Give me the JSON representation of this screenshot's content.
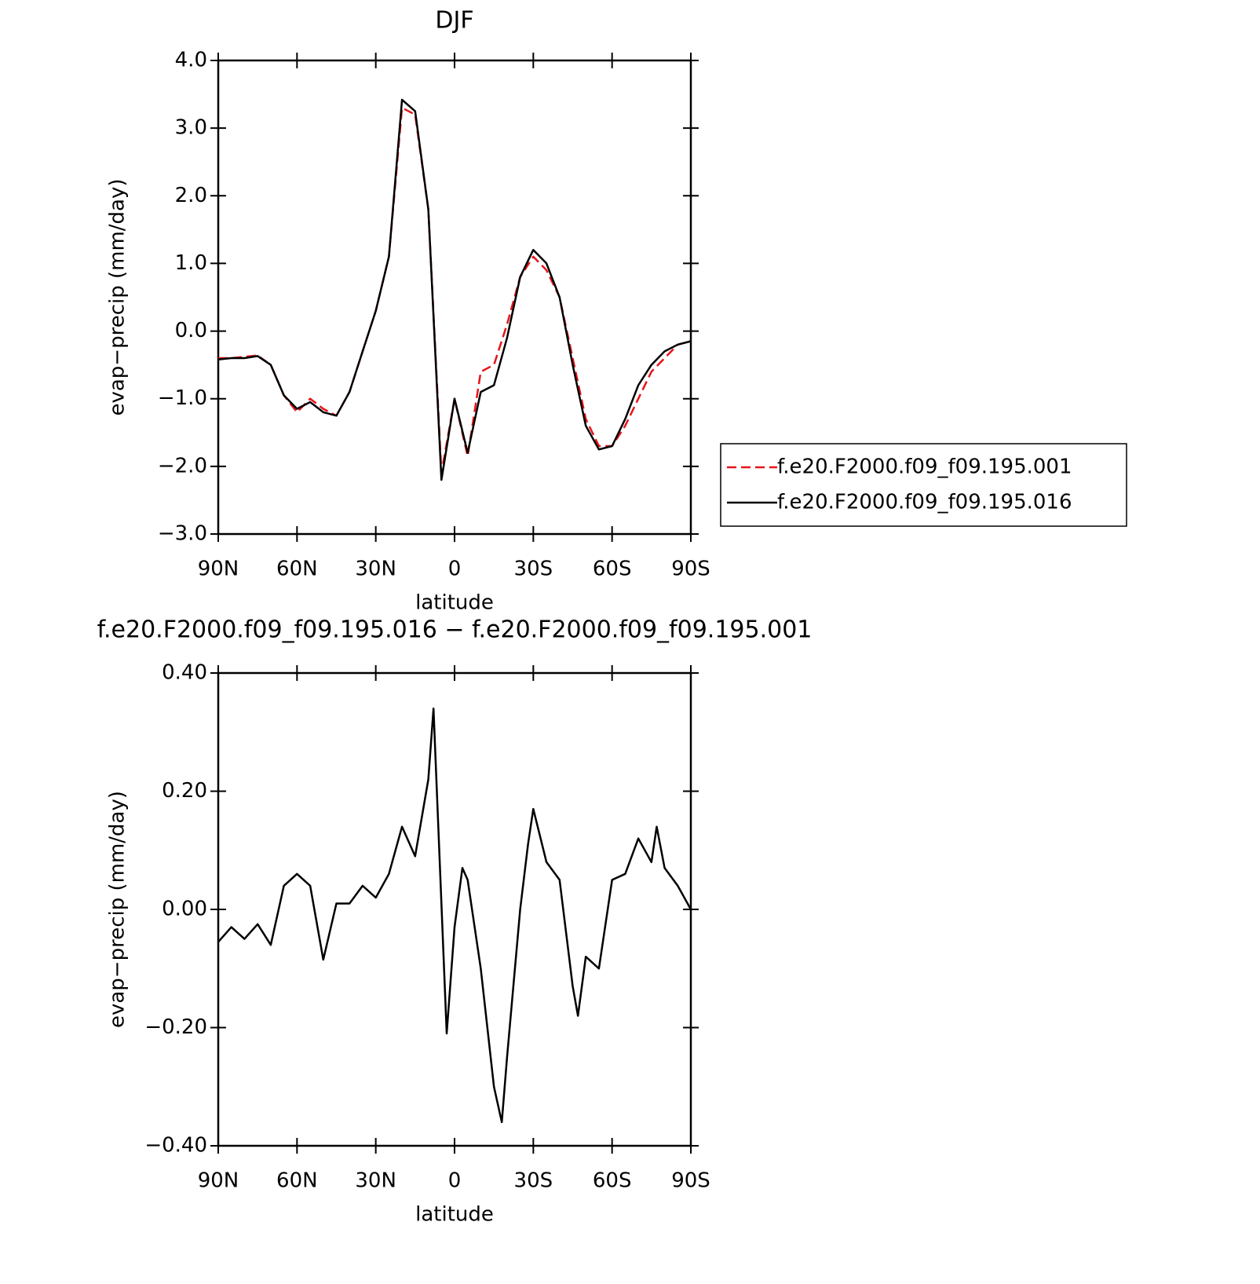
{
  "chart_data": [
    {
      "type": "line",
      "title": "DJF",
      "x_label": "latitude",
      "y_label": "evap−precip (mm/day)",
      "x": [
        90,
        85,
        80,
        75,
        70,
        65,
        60,
        55,
        50,
        45,
        40,
        35,
        30,
        25,
        20,
        15,
        10,
        5,
        0,
        -5,
        -10,
        -15,
        -20,
        -25,
        -30,
        -35,
        -40,
        -45,
        -50,
        -55,
        -60,
        -65,
        -70,
        -75,
        -80,
        -85,
        -90
      ],
      "series": [
        {
          "name": "f.e20.F2000.f09_f09.195.001",
          "color": "#e8141b",
          "dash": true,
          "values": [
            -0.4,
            -0.4,
            -0.38,
            -0.36,
            -0.5,
            -0.95,
            -1.2,
            -1.0,
            -1.15,
            -1.25,
            -0.9,
            -0.3,
            0.3,
            1.1,
            3.3,
            3.2,
            1.8,
            -2.1,
            -1.0,
            -1.85,
            -0.6,
            -0.5,
            0.1,
            0.8,
            1.1,
            0.9,
            0.5,
            -0.4,
            -1.3,
            -1.7,
            -1.7,
            -1.4,
            -1.0,
            -0.6,
            -0.4,
            -0.2,
            -0.15
          ]
        },
        {
          "name": "f.e20.F2000.f09_f09.195.016",
          "color": "#000000",
          "dash": false,
          "values": [
            -0.42,
            -0.4,
            -0.4,
            -0.37,
            -0.5,
            -0.95,
            -1.15,
            -1.05,
            -1.2,
            -1.25,
            -0.9,
            -0.3,
            0.3,
            1.1,
            3.42,
            3.25,
            1.8,
            -2.2,
            -1.0,
            -1.8,
            -0.9,
            -0.8,
            -0.1,
            0.8,
            1.2,
            1.0,
            0.5,
            -0.5,
            -1.4,
            -1.75,
            -1.7,
            -1.3,
            -0.8,
            -0.5,
            -0.3,
            -0.2,
            -0.15
          ]
        }
      ],
      "xlim": [
        90,
        -90
      ],
      "xticks": [
        {
          "value": 90,
          "label": "90N"
        },
        {
          "value": 60,
          "label": "60N"
        },
        {
          "value": 30,
          "label": "30N"
        },
        0,
        {
          "value": -30,
          "label": "30S"
        },
        {
          "value": -60,
          "label": "60S"
        },
        {
          "value": -90,
          "label": "90S"
        }
      ],
      "ylim": [
        -3,
        4
      ],
      "yticks": [
        {
          "value": -3,
          "label": "−3.0"
        },
        {
          "value": -2,
          "label": "−2.0"
        },
        {
          "value": -1,
          "label": "−1.0"
        },
        {
          "value": 0,
          "label": "0.0"
        },
        {
          "value": 1,
          "label": "1.0"
        },
        {
          "value": 2,
          "label": "2.0"
        },
        {
          "value": 3,
          "label": "3.0"
        },
        {
          "value": 4,
          "label": "4.0"
        }
      ],
      "legend": "right"
    },
    {
      "type": "line",
      "title": "f.e20.F2000.f09_f09.195.016 − f.e20.F2000.f09_f09.195.001",
      "x_label": "latitude",
      "y_label": "evap−precip (mm/day)",
      "x": [
        90,
        85,
        80,
        75,
        70,
        65,
        60,
        55,
        50,
        45,
        40,
        35,
        30,
        25,
        20,
        15,
        10,
        8,
        3,
        0,
        -3,
        -5,
        -10,
        -15,
        -18,
        -20,
        -25,
        -28,
        -30,
        -35,
        -40,
        -45,
        -47,
        -50,
        -55,
        -60,
        -65,
        -70,
        -75,
        -77,
        -80,
        -85,
        -90
      ],
      "series": [
        {
          "color": "#000000",
          "dash": false,
          "values": [
            -0.055,
            -0.03,
            -0.05,
            -0.025,
            -0.06,
            0.04,
            0.06,
            0.04,
            -0.085,
            0.01,
            0.01,
            0.04,
            0.02,
            0.06,
            0.14,
            0.09,
            0.22,
            0.34,
            -0.21,
            -0.03,
            0.07,
            0.05,
            -0.1,
            -0.3,
            -0.36,
            -0.25,
            0.0,
            0.11,
            0.17,
            0.08,
            0.05,
            -0.13,
            -0.18,
            -0.08,
            -0.1,
            0.05,
            0.06,
            0.12,
            0.08,
            0.14,
            0.07,
            0.04,
            0.0
          ]
        }
      ],
      "xlim": [
        90,
        -90
      ],
      "xticks": [
        {
          "value": 90,
          "label": "90N"
        },
        {
          "value": 60,
          "label": "60N"
        },
        {
          "value": 30,
          "label": "30N"
        },
        0,
        {
          "value": -30,
          "label": "30S"
        },
        {
          "value": -60,
          "label": "60S"
        },
        {
          "value": -90,
          "label": "90S"
        }
      ],
      "ylim": [
        -0.4,
        0.4
      ],
      "yticks": [
        {
          "value": -0.4,
          "label": "−0.40"
        },
        {
          "value": -0.2,
          "label": "−0.20"
        },
        {
          "value": 0,
          "label": "0.00"
        },
        {
          "value": 0.2,
          "label": "0.20"
        },
        {
          "value": 0.4,
          "label": "0.40"
        }
      ]
    }
  ]
}
